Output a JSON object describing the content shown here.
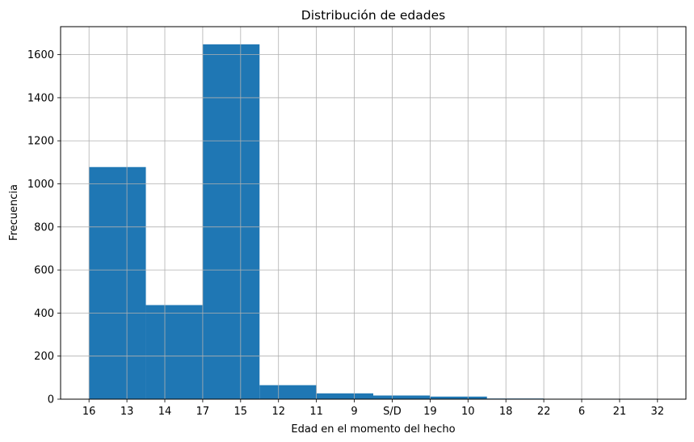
{
  "chart_data": {
    "type": "bar",
    "title": "Distribución de edades",
    "xlabel": "Edad en el momento del hecho",
    "ylabel": "Frecuencia",
    "x_ticks": [
      "16",
      "13",
      "14",
      "17",
      "15",
      "12",
      "11",
      "9",
      "S/D",
      "19",
      "10",
      "18",
      "22",
      "6",
      "21",
      "32"
    ],
    "bins": [
      {
        "start": 0,
        "end": 1.5,
        "value": 1078
      },
      {
        "start": 1.5,
        "end": 3.0,
        "value": 437
      },
      {
        "start": 3.0,
        "end": 4.5,
        "value": 1648
      },
      {
        "start": 4.5,
        "end": 6.0,
        "value": 65
      },
      {
        "start": 6.0,
        "end": 7.5,
        "value": 27
      },
      {
        "start": 7.5,
        "end": 9.0,
        "value": 17
      },
      {
        "start": 9.0,
        "end": 10.5,
        "value": 12
      },
      {
        "start": 10.5,
        "end": 12.0,
        "value": 3
      },
      {
        "start": 12.0,
        "end": 13.5,
        "value": 2
      },
      {
        "start": 13.5,
        "end": 15.0,
        "value": 2
      }
    ],
    "ylim": [
      0,
      1730
    ],
    "y_ticks": [
      0,
      200,
      400,
      600,
      800,
      1000,
      1200,
      1400,
      1600
    ],
    "xlim": [
      -0.75,
      15.75
    ],
    "grid": true,
    "bar_color": "#1f77b4",
    "grid_color": "#b0b0b0"
  }
}
